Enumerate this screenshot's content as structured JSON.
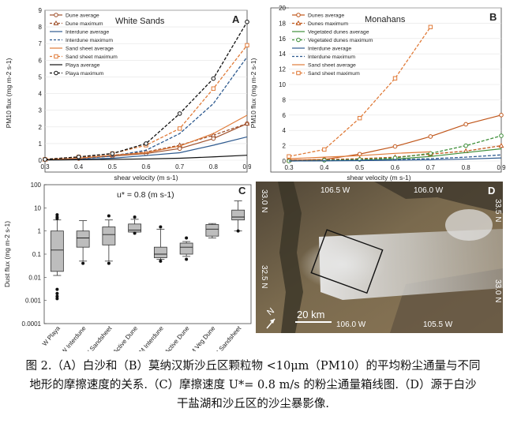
{
  "chart_data": [
    {
      "panel": "A",
      "type": "line",
      "title": "White Sands",
      "xlabel": "shear velocity (m s-1)",
      "ylabel": "PM10 flux (mg m-2 s-1)",
      "xlim": [
        0.3,
        0.9
      ],
      "ylim": [
        0,
        9
      ],
      "xticks": [
        "0.3",
        "0.4",
        "0.5",
        "0.6",
        "0.7",
        "0.8",
        "0.9"
      ],
      "yticks": [
        "0",
        "1",
        "2",
        "3",
        "4",
        "5",
        "6",
        "7",
        "8",
        "9"
      ],
      "x": [
        0.3,
        0.4,
        0.5,
        0.6,
        0.7,
        0.8,
        0.9
      ],
      "series": [
        {
          "name": "Dune average",
          "color": "#a0522d",
          "marker": "circle",
          "dash": false,
          "values": [
            0.05,
            0.1,
            0.25,
            0.4,
            0.7,
            1.3,
            2.2
          ]
        },
        {
          "name": "Dune maximum",
          "color": "#a0522d",
          "marker": "triangle",
          "dash": true,
          "values": [
            0.05,
            0.15,
            0.3,
            0.5,
            0.9,
            1.5,
            2.2
          ]
        },
        {
          "name": "Interdune average",
          "color": "#2e5a8f",
          "marker": "none",
          "dash": false,
          "values": [
            0.02,
            0.05,
            0.12,
            0.28,
            0.45,
            0.9,
            1.4
          ]
        },
        {
          "name": "Interdune maximum",
          "color": "#2e5a8f",
          "marker": "none",
          "dash": true,
          "values": [
            0.03,
            0.08,
            0.25,
            0.6,
            1.6,
            3.4,
            6.2
          ]
        },
        {
          "name": "Sand sheet average",
          "color": "#e07b39",
          "marker": "none",
          "dash": false,
          "values": [
            0.05,
            0.12,
            0.3,
            0.45,
            0.85,
            1.6,
            2.7
          ]
        },
        {
          "name": "Sand sheet maximum",
          "color": "#e07b39",
          "marker": "square",
          "dash": true,
          "values": [
            0.05,
            0.2,
            0.4,
            0.9,
            1.9,
            4.3,
            6.9
          ]
        },
        {
          "name": "Playa average",
          "color": "#111111",
          "marker": "none",
          "dash": false,
          "values": [
            0.01,
            0.03,
            0.05,
            0.08,
            0.12,
            0.2,
            0.3
          ]
        },
        {
          "name": "Playa maximum",
          "color": "#111111",
          "marker": "circle",
          "dash": true,
          "values": [
            0.05,
            0.2,
            0.4,
            1.0,
            2.8,
            4.9,
            8.3
          ]
        }
      ]
    },
    {
      "panel": "B",
      "type": "line",
      "title": "Monahans",
      "xlabel": "shear velocity (m s-1)",
      "ylabel": "PM10 flux (mg m-2 s-1)",
      "xlim": [
        0.3,
        0.9
      ],
      "ylim": [
        0,
        20
      ],
      "xticks": [
        "0.3",
        "0.4",
        "0.5",
        "0.6",
        "0.7",
        "0.8",
        "0.9"
      ],
      "yticks": [
        "0",
        "2",
        "4",
        "6",
        "8",
        "10",
        "12",
        "14",
        "16",
        "18",
        "20"
      ],
      "x": [
        0.3,
        0.4,
        0.5,
        0.6,
        0.7,
        0.8,
        0.9
      ],
      "series": [
        {
          "name": "Dunes average",
          "color": "#c0561a",
          "marker": "circle",
          "dash": false,
          "values": [
            0.1,
            0.2,
            0.9,
            1.9,
            3.2,
            4.8,
            6.0
          ]
        },
        {
          "name": "Dunes maximum",
          "color": "#c0561a",
          "marker": "triangle",
          "dash": true,
          "values": [
            0.1,
            0.2,
            0.3,
            0.5,
            0.9,
            1.3,
            2.0
          ]
        },
        {
          "name": "Vegetated dunes average",
          "color": "#3f8f3a",
          "marker": "none",
          "dash": false,
          "values": [
            0.0,
            0.05,
            0.1,
            0.25,
            0.6,
            1.1,
            1.6
          ]
        },
        {
          "name": "Vegetated dunes maximum",
          "color": "#3f8f3a",
          "marker": "circle",
          "dash": true,
          "values": [
            0.0,
            0.1,
            0.2,
            0.4,
            1.0,
            2.0,
            3.3
          ]
        },
        {
          "name": "Interdune average",
          "color": "#2e5a8f",
          "marker": "none",
          "dash": false,
          "values": [
            0.0,
            0.02,
            0.05,
            0.1,
            0.15,
            0.25,
            0.4
          ]
        },
        {
          "name": "Interdune maximum",
          "color": "#2e5a8f",
          "marker": "none",
          "dash": true,
          "values": [
            0.0,
            0.05,
            0.1,
            0.2,
            0.3,
            0.5,
            0.8
          ]
        },
        {
          "name": "Sand sheet average",
          "color": "#e07b39",
          "marker": "none",
          "dash": false,
          "values": [
            0.3,
            0.5,
            0.7,
            1.0,
            1.2,
            null,
            null
          ]
        },
        {
          "name": "Sand sheet maximum",
          "color": "#e07b39",
          "marker": "square",
          "dash": true,
          "values": [
            0.6,
            1.5,
            5.6,
            10.8,
            17.5,
            null,
            null
          ]
        }
      ]
    },
    {
      "panel": "C",
      "type": "box",
      "title": "u* = 0.8 (m s-1)",
      "ylabel": "Dust flux (mg m-2 s-1)",
      "yscale": "log",
      "ylim": [
        0.0001,
        100
      ],
      "yticks": [
        "0.0001",
        "0.001",
        "0.01",
        "0.1",
        "1",
        "10",
        "100"
      ],
      "categories": [
        "W Playa",
        "W Interdune",
        "W Sandsheet",
        "W Active Dune",
        "M Interdune",
        "M Active Dune",
        "M Veg Dune",
        "M Sandsheet"
      ],
      "boxes": [
        {
          "min": 0.012,
          "q1": 0.018,
          "median": 0.15,
          "q3": 1.0,
          "max": 3.0,
          "outliers": [
            5,
            4,
            3.5,
            0.003,
            0.002,
            0.0015,
            0.0012
          ]
        },
        {
          "min": 0.05,
          "q1": 0.2,
          "median": 0.5,
          "q3": 1.0,
          "max": 2.8,
          "outliers": [
            0.04
          ]
        },
        {
          "min": 0.05,
          "q1": 0.25,
          "median": 0.7,
          "q3": 1.5,
          "max": 3.0,
          "outliers": [
            4.5,
            0.04
          ]
        },
        {
          "min": 0.9,
          "q1": 0.9,
          "median": 1.1,
          "q3": 2.0,
          "max": 3.2,
          "outliers": [
            4.0,
            0.8
          ]
        },
        {
          "min": 0.06,
          "q1": 0.07,
          "median": 0.1,
          "q3": 0.2,
          "max": 1.2,
          "outliers": [
            1.5,
            0.05
          ]
        },
        {
          "min": 0.08,
          "q1": 0.1,
          "median": 0.2,
          "q3": 0.3,
          "max": 0.35,
          "outliers": [
            0.5,
            0.06
          ]
        },
        {
          "min": 0.5,
          "q1": 0.6,
          "median": 1.2,
          "q3": 1.9,
          "max": 2.1,
          "outliers": []
        },
        {
          "min": 1.0,
          "q1": 3.0,
          "median": 4.0,
          "q3": 8.0,
          "max": 20.0,
          "outliers": [
            1.0
          ]
        }
      ]
    }
  ],
  "panels": {
    "a": "A",
    "b": "B",
    "c": "C",
    "d": "D"
  },
  "map": {
    "labels": {
      "lat_top": "33.0 N",
      "lat_top_right": "33.5 N",
      "lat_mid_left": "32.5 N",
      "lat_mid_right": "33.0 N",
      "lon_top_left": "106.5 W",
      "lon_top_right": "106.0 W",
      "lon_bottom_left": "106.0 W",
      "lon_bottom_right": "105.5 W",
      "scale": "20 km",
      "north": "N"
    }
  },
  "caption": {
    "line1": "图 2.（A）白沙和（B）莫纳汉斯沙丘区颗粒物 <10μm（PM10）的平均粉尘通量与不同",
    "line2": "地形的摩擦速度的关系.（C）摩擦速度 U*= 0.8 m/s 的粉尘通量箱线图.（D）源于白沙",
    "line3": "干盐湖和沙丘区的沙尘暴影像."
  }
}
